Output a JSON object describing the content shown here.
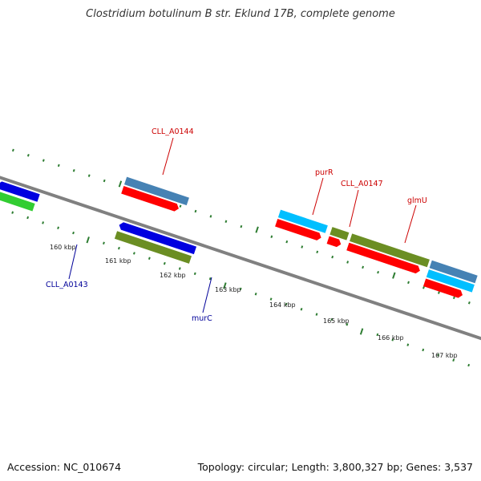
{
  "title": "Clostridium botulinum B str. Eklund 17B, complete genome",
  "footer": {
    "accession": "Accession: NC_010674",
    "summary": "Topology: circular; Length: 3,800,327 bp; Genes: 3,537"
  },
  "scale_labels": [
    "160 kbp",
    "161 kbp",
    "162 kbp",
    "163 kbp",
    "164 kbp",
    "165 kbp",
    "166 kbp",
    "167 kbp"
  ],
  "gene_labels": {
    "CLL_A0144": "CLL_A0144",
    "purR": "purR",
    "CLL_A0147": "CLL_A0147",
    "glmU": "glmU",
    "CLL_A0143": "CLL_A0143",
    "murC": "murC"
  },
  "colors": {
    "forward_label": "#cc0000",
    "reverse_label": "#000099",
    "backbone": "#808080",
    "ticks": "#2e7d32"
  }
}
